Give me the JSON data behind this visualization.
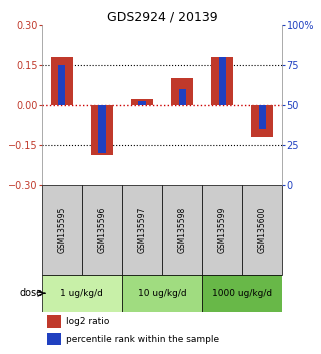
{
  "title": "GDS2924 / 20139",
  "samples": [
    "GSM135595",
    "GSM135596",
    "GSM135597",
    "GSM135598",
    "GSM135599",
    "GSM135600"
  ],
  "log2_ratio": [
    0.18,
    -0.19,
    0.02,
    0.1,
    0.18,
    -0.12
  ],
  "percentile_rank": [
    75,
    20,
    52,
    60,
    80,
    35
  ],
  "dose_groups": [
    {
      "label": "1 ug/kg/d",
      "samples": [
        0,
        1
      ],
      "color": "#c8f0a8"
    },
    {
      "label": "10 ug/kg/d",
      "samples": [
        2,
        3
      ],
      "color": "#a0dc80"
    },
    {
      "label": "1000 ug/kg/d",
      "samples": [
        4,
        5
      ],
      "color": "#68b848"
    }
  ],
  "bar_color_red": "#c0392b",
  "bar_color_blue": "#2040c0",
  "ylim_left": [
    -0.3,
    0.3
  ],
  "ylim_right": [
    0,
    100
  ],
  "yticks_left": [
    -0.3,
    -0.15,
    0,
    0.15,
    0.3
  ],
  "yticks_right": [
    0,
    25,
    50,
    75,
    100
  ],
  "hline_zero_color": "#cc0000",
  "hline_color": "black",
  "sample_bg_color": "#cccccc",
  "legend_red_label": "log2 ratio",
  "legend_blue_label": "percentile rank within the sample",
  "red_bar_width": 0.55,
  "blue_bar_width": 0.18
}
